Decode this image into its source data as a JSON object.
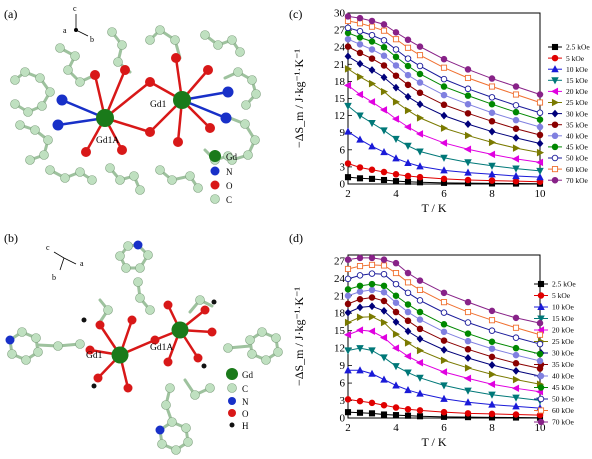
{
  "panels": {
    "a": "(a)",
    "b": "(b)",
    "c": "(c)",
    "d": "(d)"
  },
  "structure_a": {
    "labels": [
      "Gd1A",
      "Gd1"
    ],
    "key": [
      {
        "text": "Gd",
        "color": "#1a7a1a"
      },
      {
        "text": "N",
        "color": "#1830c8"
      },
      {
        "text": "O",
        "color": "#d81818"
      },
      {
        "text": "C",
        "color": "#bfe0c0"
      }
    ],
    "axes": [
      "c",
      "a",
      "b"
    ]
  },
  "structure_b": {
    "labels": [
      "Gd1",
      "Gd1A"
    ],
    "key": [
      {
        "text": "Gd",
        "color": "#1a7a1a"
      },
      {
        "text": "C",
        "color": "#bfe0c0"
      },
      {
        "text": "N",
        "color": "#1830c8"
      },
      {
        "text": "O",
        "color": "#d81818"
      },
      {
        "text": "H",
        "color": "#111111"
      }
    ],
    "axes": [
      "c",
      "a",
      "b"
    ]
  },
  "chart_data": [
    {
      "panel": "(c)",
      "type": "line",
      "xlabel": "T / K",
      "ylabel": "−ΔS_m / J·kg⁻¹·K⁻¹",
      "xlim": [
        2,
        10
      ],
      "ylim": [
        0,
        30
      ],
      "xticks": [
        2,
        4,
        6,
        8,
        10
      ],
      "yticks": [
        0,
        3,
        6,
        9,
        12,
        15,
        18,
        21,
        24,
        27,
        30
      ],
      "x": [
        2,
        2.5,
        3,
        3.5,
        4,
        4.5,
        5,
        6,
        7,
        8,
        9,
        10
      ],
      "legend": "right",
      "series": [
        {
          "name": "2.5 kOe",
          "color": "#000000",
          "marker": "square",
          "values": [
            1.2,
            1.0,
            0.9,
            0.7,
            0.5,
            0.4,
            0.3,
            0.2,
            0.15,
            0.1,
            0.08,
            0.05
          ]
        },
        {
          "name": "5 kOe",
          "color": "#e00000",
          "marker": "circle",
          "values": [
            3.6,
            2.9,
            2.5,
            2.1,
            1.7,
            1.4,
            1.2,
            0.9,
            0.7,
            0.6,
            0.5,
            0.4
          ]
        },
        {
          "name": "10 kOe",
          "color": "#1a1ad8",
          "marker": "triangle-up",
          "values": [
            9.2,
            7.8,
            6.6,
            5.6,
            4.5,
            3.7,
            3.1,
            2.4,
            2.0,
            1.7,
            1.4,
            1.2
          ]
        },
        {
          "name": "15 kOe",
          "color": "#007878",
          "marker": "triangle-down",
          "values": [
            13.7,
            12.0,
            10.7,
            9.4,
            7.9,
            6.7,
            5.7,
            4.6,
            3.8,
            3.2,
            2.7,
            2.3
          ]
        },
        {
          "name": "20 kOe",
          "color": "#e000e0",
          "marker": "triangle-left",
          "values": [
            17.3,
            15.7,
            14.4,
            13.0,
            11.4,
            10.0,
            8.8,
            7.2,
            6.1,
            5.2,
            4.4,
            3.8
          ]
        },
        {
          "name": "25 kOe",
          "color": "#7a7a00",
          "marker": "triangle-right",
          "values": [
            20.2,
            18.8,
            17.6,
            16.2,
            14.4,
            12.9,
            11.6,
            9.8,
            8.5,
            7.3,
            6.3,
            5.5
          ]
        },
        {
          "name": "30 kOe",
          "color": "#00007a",
          "marker": "diamond",
          "values": [
            22.4,
            21.1,
            20.0,
            18.7,
            16.9,
            15.3,
            14.0,
            12.0,
            10.5,
            9.2,
            8.1,
            7.1
          ]
        },
        {
          "name": "35 kOe",
          "color": "#8a0000",
          "marker": "hexagon",
          "values": [
            24.1,
            23.0,
            22.0,
            20.8,
            19.0,
            17.4,
            16.0,
            13.9,
            12.4,
            11.0,
            9.7,
            8.6
          ]
        },
        {
          "name": "40 kOe",
          "color": "#8080e0",
          "marker": "star",
          "values": [
            25.4,
            24.5,
            23.6,
            22.5,
            20.8,
            19.1,
            17.8,
            15.6,
            14.0,
            12.5,
            11.2,
            10.0
          ]
        },
        {
          "name": "45 kOe",
          "color": "#008800",
          "marker": "pentagon",
          "values": [
            26.5,
            25.7,
            25.0,
            24.0,
            22.3,
            20.7,
            19.3,
            17.1,
            15.5,
            14.0,
            12.6,
            11.3
          ]
        },
        {
          "name": "50 kOe",
          "color": "#1a1a9a",
          "marker": "circle-open",
          "values": [
            27.4,
            26.8,
            26.1,
            25.2,
            23.6,
            22.0,
            20.7,
            18.4,
            16.7,
            15.2,
            13.8,
            12.5
          ]
        },
        {
          "name": "60 kOe",
          "color": "#f07030",
          "marker": "square-open",
          "values": [
            28.6,
            28.2,
            27.6,
            26.9,
            25.4,
            23.9,
            22.6,
            20.4,
            18.6,
            17.1,
            15.7,
            14.3
          ]
        },
        {
          "name": "70 kOe",
          "color": "#882288",
          "marker": "circle",
          "values": [
            29.4,
            29.1,
            28.6,
            28.0,
            26.6,
            25.3,
            24.1,
            21.9,
            20.1,
            18.5,
            17.1,
            15.7
          ]
        }
      ]
    },
    {
      "panel": "(d)",
      "type": "line",
      "xlabel": "T / K",
      "ylabel": "−ΔS_m / J·kg⁻¹·K⁻¹",
      "xlim": [
        2,
        10
      ],
      "ylim": [
        0,
        28
      ],
      "xticks": [
        2,
        4,
        6,
        8,
        10
      ],
      "yticks": [
        0,
        3,
        6,
        9,
        12,
        15,
        18,
        21,
        24,
        27
      ],
      "x": [
        2,
        2.5,
        3,
        3.5,
        4,
        4.5,
        5,
        6,
        7,
        8,
        9,
        10
      ],
      "legend": "right",
      "series": [
        {
          "name": "2.5 kOe",
          "color": "#000000",
          "marker": "square",
          "values": [
            1.0,
            0.9,
            0.8,
            0.6,
            0.5,
            0.4,
            0.3,
            0.2,
            0.15,
            0.1,
            0.08,
            0.05
          ]
        },
        {
          "name": "5 kOe",
          "color": "#e00000",
          "marker": "circle",
          "values": [
            3.2,
            2.9,
            2.6,
            2.2,
            1.8,
            1.5,
            1.3,
            1.0,
            0.8,
            0.7,
            0.6,
            0.5
          ]
        },
        {
          "name": "10 kOe",
          "color": "#1a1ad8",
          "marker": "triangle-up",
          "values": [
            8.2,
            8.2,
            7.6,
            6.6,
            5.6,
            4.8,
            4.2,
            3.3,
            2.7,
            2.3,
            2.0,
            1.7
          ]
        },
        {
          "name": "15 kOe",
          "color": "#007878",
          "marker": "triangle-down",
          "values": [
            11.6,
            12.0,
            11.6,
            10.4,
            8.9,
            7.8,
            6.9,
            5.6,
            4.7,
            4.0,
            3.5,
            3.0
          ]
        },
        {
          "name": "20 kOe",
          "color": "#e000e0",
          "marker": "triangle-left",
          "values": [
            14.3,
            15.1,
            14.9,
            13.8,
            12.0,
            10.6,
            9.5,
            7.9,
            6.8,
            5.8,
            5.1,
            4.5
          ]
        },
        {
          "name": "25 kOe",
          "color": "#7a7a00",
          "marker": "triangle-right",
          "values": [
            16.4,
            17.3,
            17.4,
            16.4,
            14.4,
            12.9,
            11.6,
            9.9,
            8.6,
            7.5,
            6.6,
            5.8
          ]
        },
        {
          "name": "30 kOe",
          "color": "#00007a",
          "marker": "diamond",
          "values": [
            18.1,
            19.0,
            19.2,
            18.4,
            16.5,
            14.9,
            13.6,
            11.7,
            10.3,
            9.1,
            8.1,
            7.2
          ]
        },
        {
          "name": "35 kOe",
          "color": "#8a0000",
          "marker": "hexagon",
          "values": [
            19.6,
            20.4,
            20.7,
            20.1,
            18.2,
            16.7,
            15.3,
            13.3,
            11.8,
            10.5,
            9.4,
            8.5
          ]
        },
        {
          "name": "40 kOe",
          "color": "#8080e0",
          "marker": "star",
          "values": [
            21.0,
            21.7,
            22.0,
            21.6,
            19.8,
            18.2,
            16.9,
            14.8,
            13.2,
            11.9,
            10.8,
            9.8
          ]
        },
        {
          "name": "45 kOe",
          "color": "#008800",
          "marker": "pentagon",
          "values": [
            22.1,
            22.7,
            23.0,
            22.7,
            21.0,
            19.5,
            18.2,
            16.1,
            14.5,
            13.1,
            12.0,
            11.0
          ]
        },
        {
          "name": "50 kOe",
          "color": "#1a1a9a",
          "marker": "circle-open",
          "values": [
            23.9,
            24.5,
            24.8,
            24.7,
            23.0,
            21.5,
            20.2,
            18.1,
            16.4,
            15.0,
            13.8,
            12.7
          ]
        },
        {
          "name": "60 kOe",
          "color": "#f07030",
          "marker": "square-open",
          "values": [
            25.6,
            26.1,
            26.3,
            26.2,
            24.9,
            23.3,
            22.0,
            19.9,
            18.2,
            16.8,
            15.5,
            14.3
          ]
        },
        {
          "name": "70 kOe",
          "color": "#882288",
          "marker": "circle",
          "values": [
            27.2,
            27.5,
            27.5,
            27.2,
            26.6,
            24.9,
            23.6,
            21.5,
            19.9,
            18.4,
            17.2,
            16.3
          ]
        }
      ]
    }
  ]
}
